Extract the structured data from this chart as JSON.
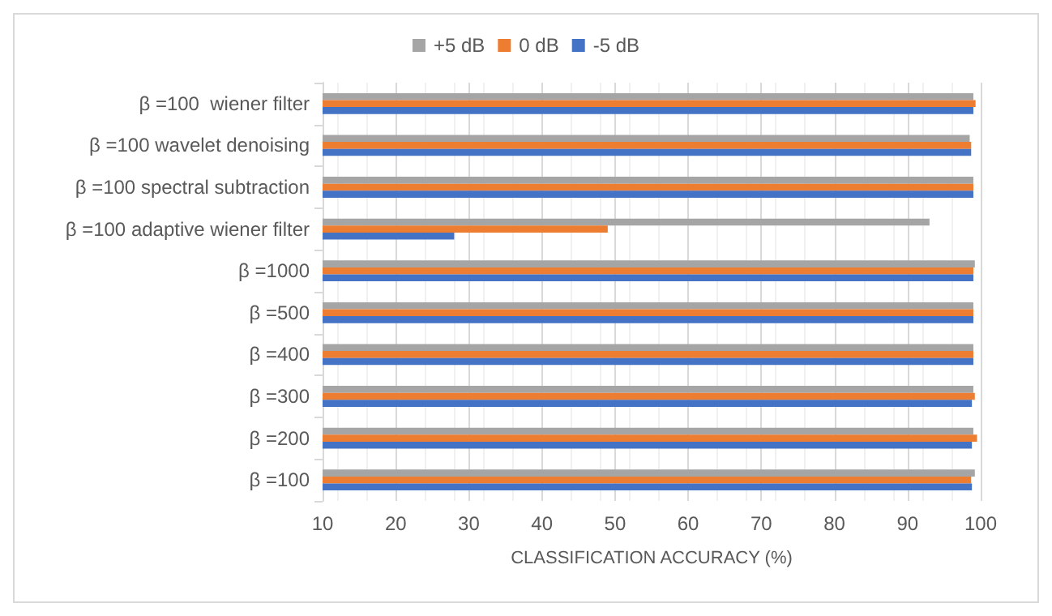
{
  "chart_data": {
    "type": "bar",
    "orientation": "horizontal",
    "xlabel": "CLASSIFICATION ACCURACY (%)",
    "categories": [
      "β =100  wiener filter",
      "β =100 wavelet denoising",
      "β =100 spectral subtraction",
      "β =100 adaptive wiener filter",
      "β =1000",
      "β =500",
      "β =400",
      "β =300",
      "β =200",
      "β =100"
    ],
    "series": [
      {
        "name": "+5 dB",
        "color": "#a5a5a5",
        "values": [
          99,
          98.5,
          99,
          93,
          99.2,
          99,
          99,
          99,
          99,
          99.2
        ]
      },
      {
        "name": "0 dB",
        "color": "#ed7d31",
        "values": [
          99.3,
          98.7,
          99,
          49,
          99,
          99,
          99,
          99.2,
          99.5,
          98.7
        ]
      },
      {
        "name": "-5 dB",
        "color": "#4472c4",
        "values": [
          99,
          98.7,
          99,
          28,
          99,
          99,
          99,
          98.8,
          98.8,
          98.8
        ]
      }
    ],
    "xlim": [
      10,
      100
    ],
    "xticks": [
      10,
      20,
      30,
      40,
      50,
      60,
      70,
      80,
      90,
      100
    ],
    "grid": "x",
    "legend": "top"
  }
}
